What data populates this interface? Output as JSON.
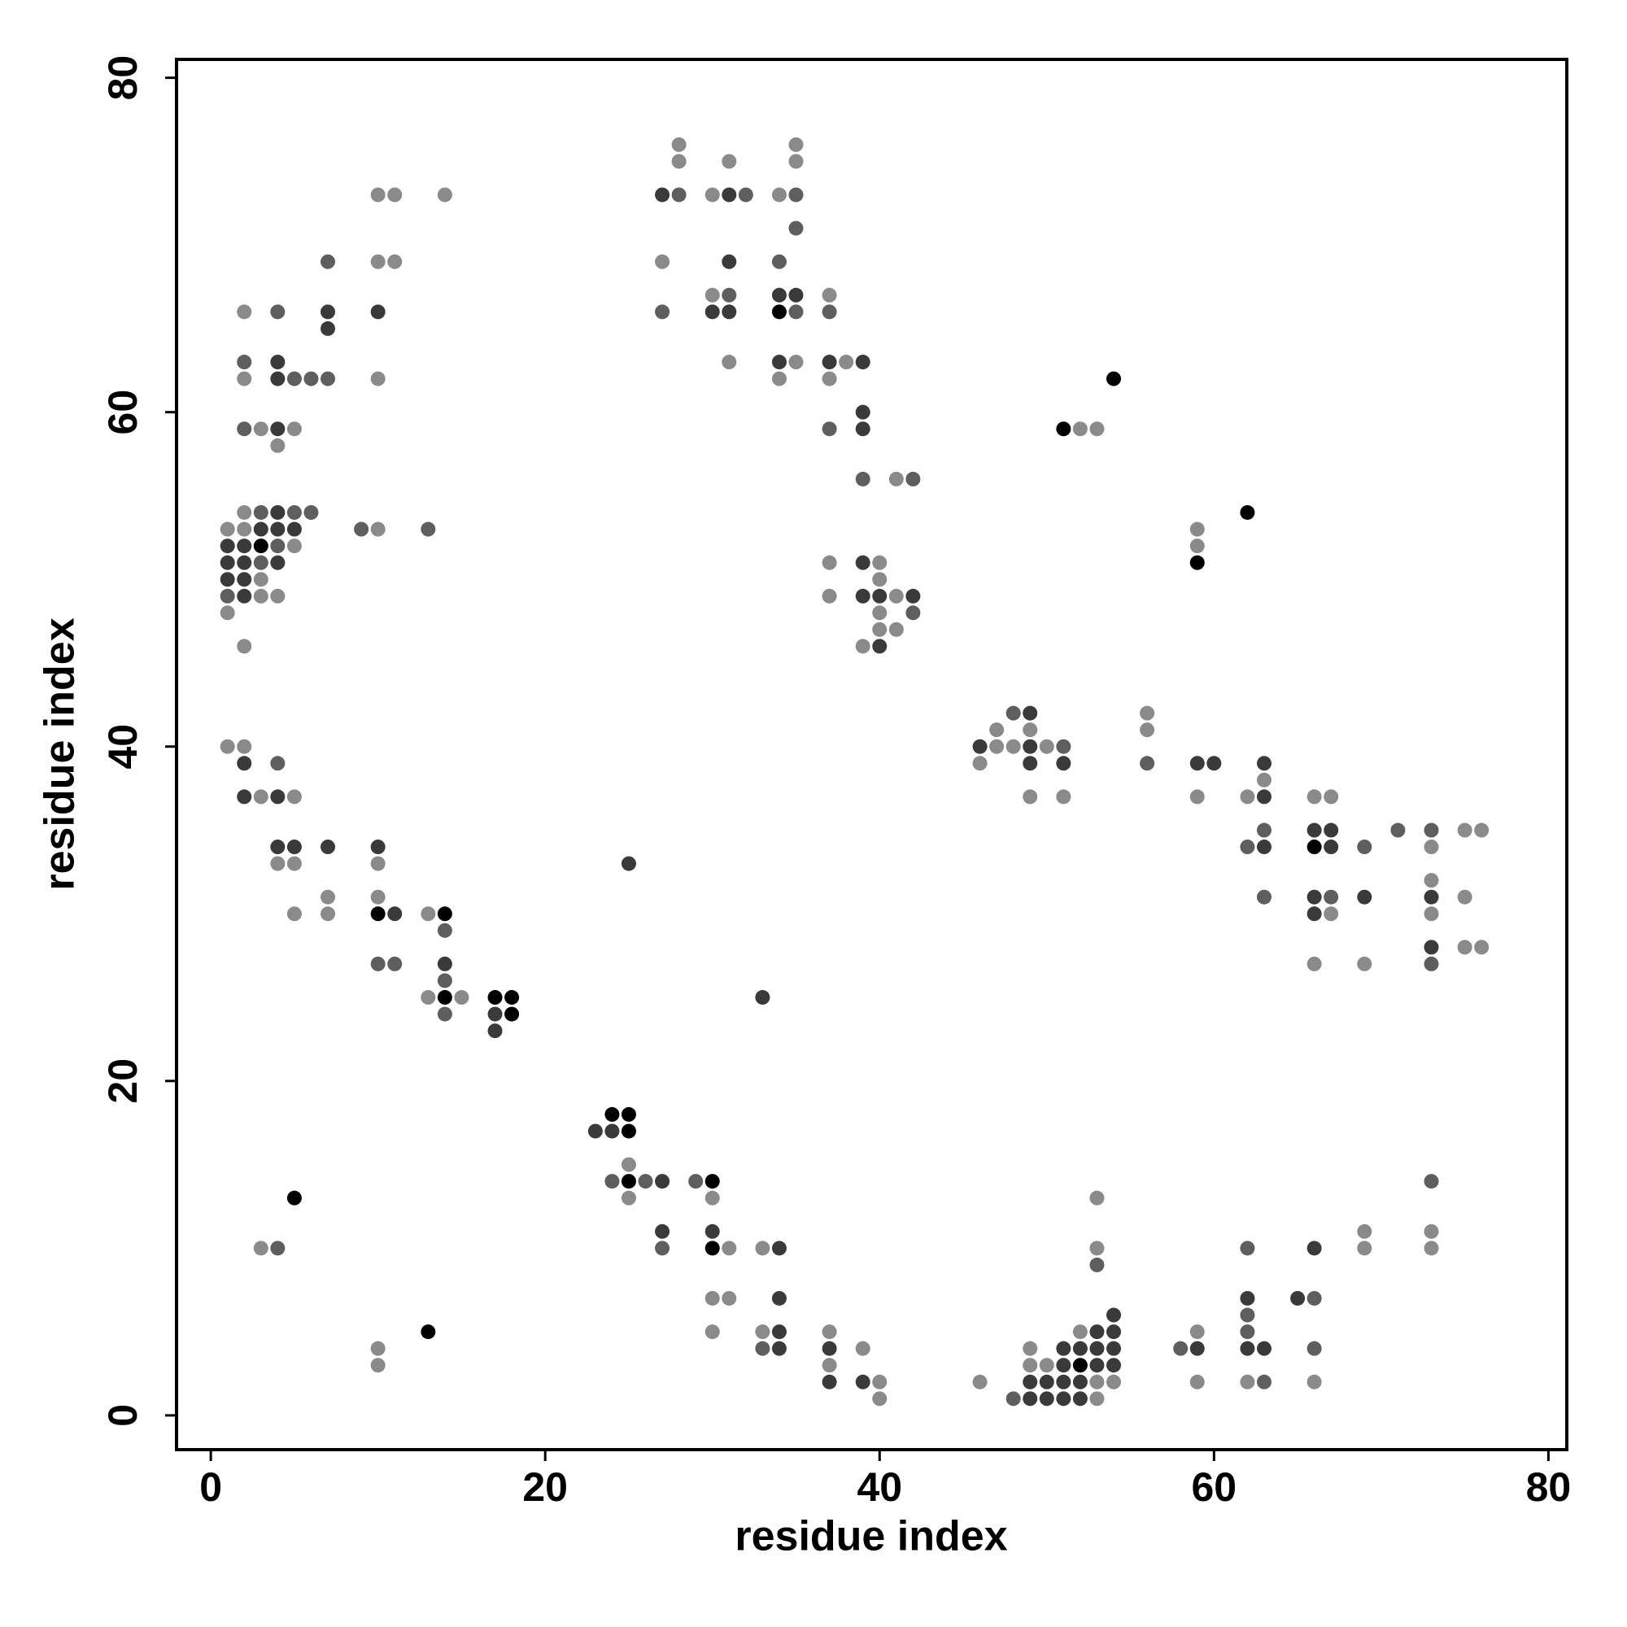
{
  "chart_data": {
    "type": "scatter",
    "xlabel": "residue index",
    "ylabel": "residue index",
    "xlim": [
      -2.05,
      81.1
    ],
    "ylim": [
      -2.05,
      81.1
    ],
    "xticks": [
      0,
      20,
      40,
      60,
      80
    ],
    "yticks": [
      0,
      20,
      40,
      60,
      80
    ],
    "grid": false,
    "series": [
      {
        "color": "#000000",
        "x": [
          34,
          54,
          51,
          62,
          3,
          59,
          66,
          10,
          14,
          14,
          17,
          18,
          18,
          24,
          25,
          25,
          25,
          30,
          5,
          30,
          13,
          52
        ],
        "values": [
          66,
          62,
          59,
          54,
          52,
          51,
          34,
          30,
          30,
          25,
          25,
          25,
          24,
          18,
          18,
          17,
          14,
          14,
          13,
          10,
          5,
          3
        ]
      },
      {
        "color": "#3a3a3a",
        "x": [
          31,
          27,
          31,
          34,
          35,
          7,
          10,
          30,
          31,
          7,
          4,
          34,
          37,
          39,
          4,
          39,
          4,
          39,
          4,
          3,
          4,
          5,
          1,
          2,
          1,
          2,
          4,
          39,
          1,
          2,
          2,
          39,
          40,
          42,
          40,
          49,
          46,
          49,
          2,
          49,
          51,
          59,
          60,
          63,
          2,
          4,
          63,
          66,
          67,
          4,
          5,
          7,
          10,
          63,
          67,
          25,
          66,
          69,
          73,
          11,
          66,
          73,
          14,
          17,
          17,
          23,
          24,
          27,
          27,
          30,
          34,
          66,
          34,
          62,
          65,
          54,
          34,
          53,
          54,
          34,
          37,
          51,
          52,
          53,
          54,
          59,
          62,
          63,
          51,
          53,
          54,
          37,
          39,
          49,
          50,
          51,
          52,
          49,
          50,
          51,
          52,
          33
        ],
        "values": [
          73,
          73,
          69,
          67,
          67,
          66,
          66,
          66,
          66,
          65,
          63,
          63,
          63,
          63,
          62,
          60,
          59,
          59,
          54,
          53,
          53,
          53,
          52,
          52,
          51,
          51,
          51,
          51,
          50,
          50,
          49,
          49,
          49,
          49,
          46,
          42,
          40,
          40,
          39,
          39,
          39,
          39,
          39,
          39,
          37,
          37,
          37,
          35,
          35,
          34,
          34,
          34,
          34,
          34,
          34,
          33,
          31,
          31,
          31,
          30,
          30,
          28,
          27,
          24,
          23,
          17,
          17,
          14,
          11,
          11,
          10,
          10,
          7,
          7,
          7,
          6,
          5,
          5,
          5,
          4,
          4,
          4,
          4,
          4,
          4,
          4,
          4,
          4,
          3,
          3,
          3,
          2,
          2,
          2,
          2,
          2,
          2,
          1,
          1,
          1,
          1,
          25
        ]
      },
      {
        "color": "#5e5e5e",
        "x": [
          28,
          32,
          35,
          35,
          7,
          34,
          31,
          4,
          27,
          35,
          37,
          2,
          5,
          6,
          7,
          2,
          37,
          39,
          42,
          3,
          5,
          6,
          9,
          13,
          4,
          3,
          1,
          42,
          48,
          51,
          4,
          56,
          63,
          71,
          73,
          62,
          69,
          63,
          67,
          14,
          10,
          11,
          73,
          14,
          14,
          24,
          26,
          29,
          73,
          4,
          27,
          62,
          53,
          66,
          62,
          62,
          33,
          58,
          66,
          63,
          48
        ],
        "values": [
          73,
          73,
          73,
          71,
          69,
          69,
          67,
          66,
          66,
          66,
          66,
          63,
          62,
          62,
          62,
          59,
          59,
          56,
          56,
          54,
          54,
          54,
          53,
          53,
          52,
          51,
          49,
          48,
          42,
          40,
          39,
          39,
          35,
          35,
          35,
          34,
          34,
          31,
          31,
          29,
          27,
          27,
          27,
          26,
          24,
          14,
          14,
          14,
          14,
          10,
          10,
          10,
          9,
          7,
          6,
          5,
          4,
          4,
          4,
          2,
          1
        ]
      },
      {
        "color": "#8a8a8a",
        "x": [
          28,
          35,
          28,
          31,
          35,
          10,
          11,
          14,
          30,
          34,
          10,
          11,
          27,
          30,
          37,
          2,
          31,
          35,
          38,
          2,
          10,
          34,
          37,
          3,
          5,
          52,
          53,
          4,
          41,
          2,
          1,
          2,
          10,
          59,
          5,
          59,
          37,
          40,
          3,
          40,
          3,
          4,
          37,
          41,
          1,
          40,
          40,
          41,
          2,
          39,
          56,
          47,
          49,
          56,
          1,
          2,
          47,
          48,
          50,
          46,
          63,
          3,
          5,
          49,
          51,
          59,
          62,
          66,
          67,
          75,
          76,
          73,
          4,
          5,
          10,
          73,
          7,
          10,
          75,
          5,
          7,
          13,
          67,
          73,
          75,
          76,
          66,
          69,
          13,
          15,
          25,
          25,
          30,
          53,
          69,
          73,
          3,
          31,
          33,
          53,
          69,
          73,
          30,
          31,
          30,
          33,
          37,
          52,
          59,
          10,
          39,
          49,
          10,
          37,
          49,
          50,
          40,
          46,
          53,
          54,
          59,
          62,
          66,
          40,
          53
        ],
        "values": [
          76,
          76,
          75,
          75,
          75,
          73,
          73,
          73,
          73,
          73,
          69,
          69,
          69,
          67,
          67,
          66,
          63,
          63,
          63,
          62,
          62,
          62,
          62,
          59,
          59,
          59,
          59,
          58,
          56,
          54,
          53,
          53,
          53,
          53,
          52,
          52,
          51,
          51,
          50,
          50,
          49,
          49,
          49,
          49,
          48,
          48,
          47,
          47,
          46,
          46,
          42,
          41,
          41,
          41,
          40,
          40,
          40,
          40,
          40,
          39,
          38,
          37,
          37,
          37,
          37,
          37,
          37,
          37,
          37,
          35,
          35,
          34,
          33,
          33,
          33,
          32,
          31,
          31,
          31,
          30,
          30,
          30,
          30,
          30,
          28,
          28,
          27,
          27,
          25,
          25,
          15,
          13,
          13,
          13,
          11,
          11,
          10,
          10,
          10,
          10,
          10,
          10,
          7,
          7,
          5,
          5,
          5,
          5,
          5,
          4,
          4,
          4,
          3,
          3,
          3,
          3,
          2,
          2,
          2,
          2,
          2,
          2,
          2,
          1,
          1
        ]
      }
    ]
  }
}
